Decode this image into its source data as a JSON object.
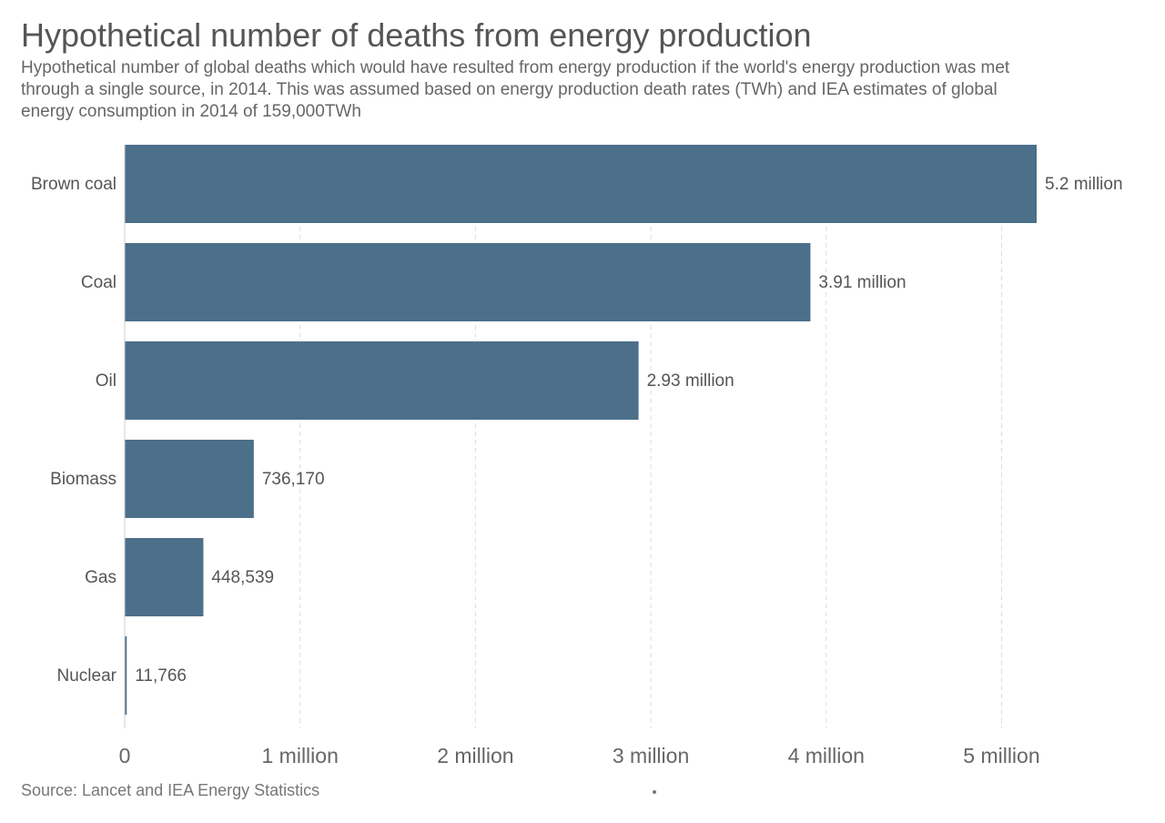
{
  "title": "Hypothetical number of deaths from energy production",
  "subtitle": "Hypothetical number of global deaths which would have resulted from energy production if the world's energy production was met through a single source, in 2014. This was assumed based on energy production death rates (TWh) and IEA estimates of global energy consumption in 2014 of 159,000TWh",
  "source": "Source: Lancet and IEA Energy Statistics",
  "colors": {
    "bar": "#4c6f8a",
    "grid": "#dddddd",
    "text": "#555555"
  },
  "chart_data": {
    "type": "bar",
    "orientation": "horizontal",
    "categories": [
      "Brown coal",
      "Coal",
      "Oil",
      "Biomass",
      "Gas",
      "Nuclear"
    ],
    "values": [
      5200000,
      3910000,
      2930000,
      736170,
      448539,
      11766
    ],
    "value_labels": [
      "5.2 million",
      "3.91 million",
      "2.93 million",
      "736,170",
      "448,539",
      "11,766"
    ],
    "xticks": [
      0,
      1000000,
      2000000,
      3000000,
      4000000,
      5000000
    ],
    "xtick_labels": [
      "0",
      "1 million",
      "2 million",
      "3 million",
      "4 million",
      "5 million"
    ],
    "xlim": [
      0,
      5200000
    ],
    "grid": "vertical-dashed"
  }
}
